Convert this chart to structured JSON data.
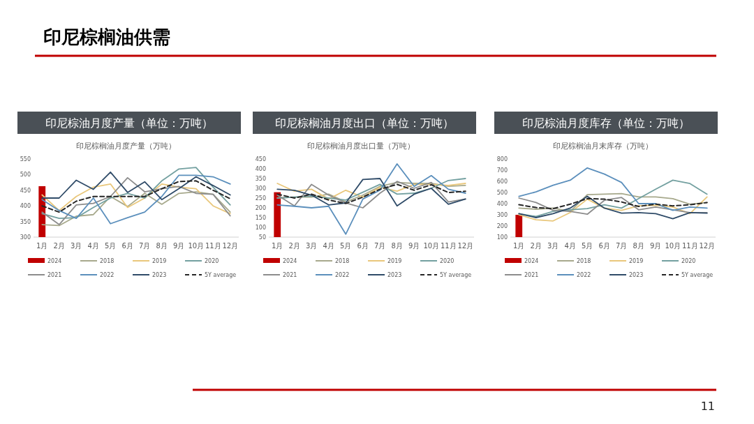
{
  "chart_data": [
    {
      "type": "line",
      "title": "印尼棕油月度产量（单位：万吨）",
      "subtitle": "印尼棕榈油月度产量（万吨）",
      "annotations": [
        "印尼棕榈油供需",
        "11"
      ],
      "categories": [
        "1月",
        "2月",
        "3月",
        "4月",
        "5月",
        "6月",
        "7月",
        "8月",
        "9月",
        "10月",
        "11月",
        "12月"
      ],
      "ylim": [
        300,
        550
      ],
      "yticks": [
        300,
        350,
        400,
        450,
        500,
        550
      ],
      "grid": false,
      "legend": "bottom",
      "marker": "none",
      "series": [
        {
          "name": "2024",
          "type": "bar",
          "color": "#c00000",
          "values": [
            463,
            null,
            null,
            null,
            null,
            null,
            null,
            null,
            null,
            null,
            null,
            null
          ]
        },
        {
          "name": "2018",
          "color": "#a7a98c",
          "values": [
            340,
            337,
            367,
            372,
            430,
            398,
            440,
            405,
            440,
            445,
            437,
            380
          ]
        },
        {
          "name": "2019",
          "color": "#e9c77b",
          "values": [
            435,
            385,
            430,
            460,
            470,
            395,
            425,
            470,
            460,
            455,
            400,
            375
          ]
        },
        {
          "name": "2020",
          "color": "#73a0a0",
          "values": [
            375,
            360,
            362,
            395,
            425,
            440,
            425,
            480,
            518,
            523,
            460,
            403
          ]
        },
        {
          "name": "2021",
          "color": "#8c8c8c",
          "values": [
            380,
            340,
            403,
            408,
            430,
            490,
            445,
            455,
            462,
            440,
            437,
            368
          ]
        },
        {
          "name": "2022",
          "color": "#5b8fbc",
          "values": [
            420,
            385,
            360,
            425,
            343,
            362,
            380,
            430,
            498,
            498,
            493,
            470
          ]
        },
        {
          "name": "2023",
          "color": "#2f4b68",
          "values": [
            425,
            425,
            482,
            453,
            508,
            443,
            477,
            420,
            455,
            493,
            465,
            435
          ]
        },
        {
          "name": "5Y average",
          "color": "#262626",
          "line_style": "dashed",
          "values": [
            400,
            380,
            415,
            430,
            430,
            430,
            430,
            455,
            478,
            480,
            450,
            423
          ]
        }
      ]
    },
    {
      "type": "line",
      "title": "印尼棕榈油月度出口（单位：万吨）",
      "subtitle": "印尼棕榈油月度出口量（万吨）",
      "categories": [
        "1月",
        "2月",
        "3月",
        "4月",
        "5月",
        "6月",
        "7月",
        "8月",
        "9月",
        "10月",
        "11月",
        "12月"
      ],
      "ylim": [
        50,
        450
      ],
      "yticks": [
        50,
        100,
        150,
        200,
        250,
        300,
        350,
        400,
        450
      ],
      "grid": false,
      "legend": "bottom",
      "marker": "none",
      "series": [
        {
          "name": "2024",
          "type": "bar",
          "color": "#c00000",
          "values": [
            280,
            null,
            null,
            null,
            null,
            null,
            null,
            null,
            null,
            null,
            null,
            null
          ]
        },
        {
          "name": "2018",
          "color": "#a7a98c",
          "values": [
            250,
            255,
            255,
            270,
            230,
            265,
            310,
            330,
            325,
            325,
            310,
            315
          ]
        },
        {
          "name": "2019",
          "color": "#e9c77b",
          "values": [
            325,
            285,
            295,
            245,
            290,
            255,
            305,
            285,
            320,
            320,
            315,
            325
          ]
        },
        {
          "name": "2020",
          "color": "#73a0a0",
          "values": [
            250,
            255,
            260,
            250,
            240,
            280,
            320,
            270,
            275,
            300,
            340,
            350
          ]
        },
        {
          "name": "2021",
          "color": "#8c8c8c",
          "values": [
            265,
            210,
            320,
            265,
            225,
            200,
            275,
            335,
            300,
            330,
            230,
            245
          ]
        },
        {
          "name": "2022",
          "color": "#5b8fbc",
          "values": [
            215,
            208,
            200,
            208,
            65,
            245,
            290,
            425,
            310,
            365,
            295,
            275
          ]
        },
        {
          "name": "2023",
          "color": "#2f4b68",
          "values": [
            295,
            290,
            265,
            215,
            225,
            345,
            350,
            210,
            270,
            300,
            218,
            245
          ]
        },
        {
          "name": "5Y average",
          "color": "#262626",
          "line_style": "dashed",
          "values": [
            270,
            250,
            270,
            240,
            222,
            255,
            295,
            320,
            290,
            318,
            278,
            285
          ]
        }
      ]
    },
    {
      "type": "line",
      "title": "印尼棕油月度库存（单位：万吨）",
      "subtitle": "印尼棕榈油月末库存（万吨）",
      "categories": [
        "1月",
        "2月",
        "3月",
        "4月",
        "5月",
        "6月",
        "7月",
        "8月",
        "9月",
        "10月",
        "11月",
        "12月"
      ],
      "ylim": [
        100,
        800
      ],
      "yticks": [
        100,
        200,
        300,
        400,
        500,
        600,
        700,
        800
      ],
      "grid": false,
      "legend": "bottom",
      "marker": "none",
      "series": [
        {
          "name": "2024",
          "type": "bar",
          "color": "#c00000",
          "values": [
            300,
            null,
            null,
            null,
            null,
            null,
            null,
            null,
            null,
            null,
            null,
            null
          ]
        },
        {
          "name": "2018",
          "color": "#a7a98c",
          "values": [
            360,
            350,
            360,
            330,
            480,
            485,
            490,
            460,
            460,
            445,
            395,
            410
          ]
        },
        {
          "name": "2019",
          "color": "#e9c77b",
          "values": [
            300,
            255,
            245,
            320,
            440,
            360,
            340,
            380,
            385,
            370,
            310,
            460
          ]
        },
        {
          "name": "2020",
          "color": "#73a0a0",
          "values": [
            310,
            285,
            330,
            345,
            355,
            390,
            360,
            445,
            530,
            610,
            580,
            485
          ]
        },
        {
          "name": "2021",
          "color": "#8c8c8c",
          "values": [
            450,
            410,
            340,
            330,
            305,
            430,
            455,
            345,
            370,
            345,
            320,
            320
          ]
        },
        {
          "name": "2022",
          "color": "#5b8fbc",
          "values": [
            465,
            505,
            565,
            610,
            720,
            665,
            590,
            400,
            400,
            340,
            370,
            360
          ]
        },
        {
          "name": "2023",
          "color": "#2f4b68",
          "values": [
            310,
            275,
            310,
            360,
            465,
            360,
            315,
            320,
            310,
            265,
            320,
            315
          ]
        },
        {
          "name": "5Y average",
          "color": "#262626",
          "line_style": "dashed",
          "values": [
            390,
            365,
            355,
            395,
            445,
            440,
            415,
            375,
            395,
            380,
            390,
            410
          ]
        }
      ]
    }
  ]
}
